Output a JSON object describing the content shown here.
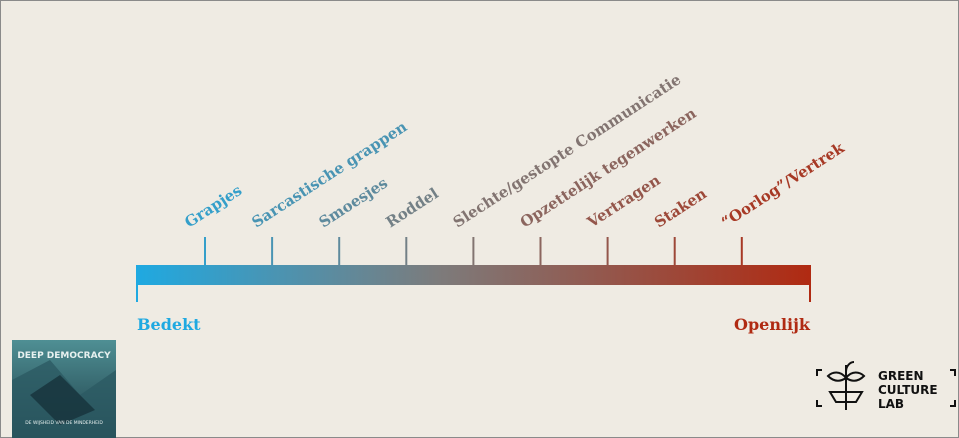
{
  "scale": {
    "labels": [
      "Grapjes",
      "Sarcastische grappen",
      "Smoesjes",
      "Roddel",
      "Slechte/gestopte Communicatie",
      "Opzettelijk tegenwerken",
      "Vertragen",
      "Staken",
      "“Oorlog”/Vertrek"
    ],
    "left_end": "Bedekt",
    "right_end": "Openlijk"
  },
  "book": {
    "title": "DEEP DEMOCRACY",
    "subtitle": "DE WIJSHEID VAN DE MINDERHEID"
  },
  "logo": {
    "line1": "GREEN",
    "line2": "CULTURE",
    "line3": "LAB"
  }
}
